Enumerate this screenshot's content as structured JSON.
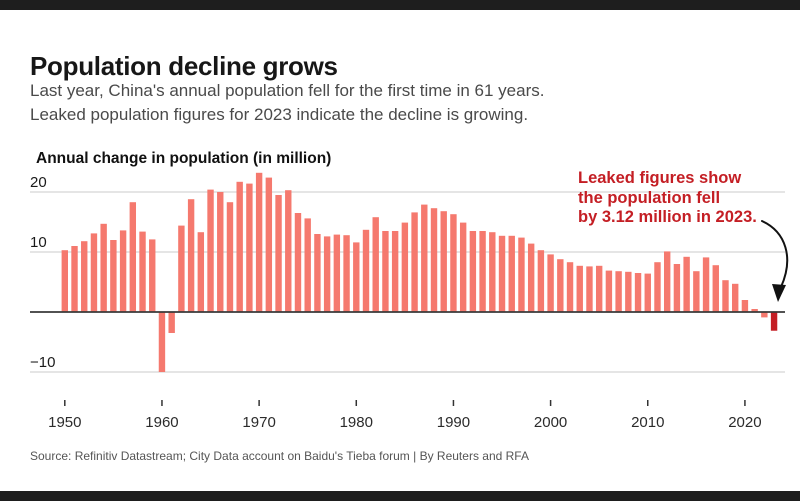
{
  "header": {
    "title": "Population decline grows",
    "subtitle_lines": [
      "Last year, China's annual population fell for the first time in 61 years.",
      "Leaked population figures for 2023 indicate the decline is growing."
    ]
  },
  "annotation": {
    "lines": [
      "Leaked figures show",
      "the population fell",
      "by 3.12 million in 2023."
    ],
    "color": "#c41e24"
  },
  "footer": {
    "source": "Source: Refinitiv Datastream; City Data account on Baidu's Tieba forum | By Reuters and RFA"
  },
  "chart_data": {
    "type": "bar",
    "title": "Annual change in population (in million)",
    "xlabel": "",
    "ylabel": "Annual change in population (in million)",
    "ylim": [
      -13,
      25
    ],
    "grid": true,
    "legend_position": "none",
    "years": [
      1950,
      1951,
      1952,
      1953,
      1954,
      1955,
      1956,
      1957,
      1958,
      1959,
      1960,
      1961,
      1962,
      1963,
      1964,
      1965,
      1966,
      1967,
      1968,
      1969,
      1970,
      1971,
      1972,
      1973,
      1974,
      1975,
      1976,
      1977,
      1978,
      1979,
      1980,
      1981,
      1982,
      1983,
      1984,
      1985,
      1986,
      1987,
      1988,
      1989,
      1990,
      1991,
      1992,
      1993,
      1994,
      1995,
      1996,
      1997,
      1998,
      1999,
      2000,
      2001,
      2002,
      2003,
      2004,
      2005,
      2006,
      2007,
      2008,
      2009,
      2010,
      2011,
      2012,
      2013,
      2014,
      2015,
      2016,
      2017,
      2018,
      2019,
      2020,
      2021,
      2022,
      2023
    ],
    "values": [
      10.3,
      11.0,
      11.8,
      13.1,
      14.7,
      12.0,
      13.6,
      18.3,
      13.4,
      12.1,
      -10.0,
      -3.5,
      14.4,
      18.8,
      13.3,
      20.4,
      20.0,
      18.3,
      21.7,
      21.4,
      23.2,
      22.4,
      19.5,
      20.3,
      16.5,
      15.6,
      13.0,
      12.6,
      12.9,
      12.8,
      11.6,
      13.7,
      15.8,
      13.5,
      13.5,
      14.9,
      16.6,
      17.9,
      17.3,
      16.8,
      16.3,
      14.9,
      13.5,
      13.5,
      13.3,
      12.7,
      12.7,
      12.4,
      11.4,
      10.3,
      9.6,
      8.8,
      8.3,
      7.7,
      7.6,
      7.7,
      6.9,
      6.8,
      6.7,
      6.5,
      6.4,
      8.3,
      10.1,
      8.0,
      9.2,
      6.8,
      9.1,
      7.8,
      5.3,
      4.7,
      2.0,
      0.5,
      -0.9,
      -3.12
    ],
    "highlight_year": 2023,
    "yticks": [
      {
        "value": 20,
        "label": "20"
      },
      {
        "value": 10,
        "label": "10"
      },
      {
        "value": -10,
        "label": "−10"
      }
    ],
    "xticks": [
      1950,
      1960,
      1970,
      1980,
      1990,
      2000,
      2010,
      2020
    ],
    "colors": {
      "bar": "#f5796e",
      "highlight": "#c41e24",
      "gridline": "#cbcbcb",
      "axis": "#3a3a3a",
      "tick_label": "#2b2b2b",
      "arrow": "#121212"
    }
  }
}
